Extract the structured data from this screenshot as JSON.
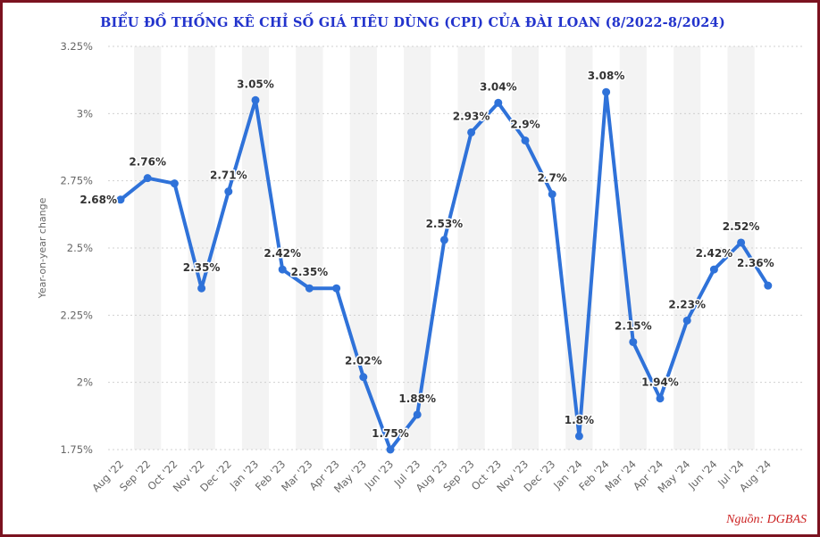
{
  "title": "BIỂU ĐỒ THỐNG KÊ CHỈ SỐ GIÁ TIÊU DÙNG (CPI) CỦA ĐÀI LOAN (8/2022-8/2024)",
  "source": "Nguồn: DGBAS",
  "colors": {
    "line": "#2f72d9",
    "title": "#2233cc",
    "source": "#cc2222",
    "frame": "#7b1220",
    "band": "#f3f3f3",
    "grid": "#d0d0d0"
  },
  "chart_data": {
    "type": "line",
    "title": "BIỂU ĐỒ THỐNG KÊ CHỈ SỐ GIÁ TIÊU DÙNG (CPI) CỦA ĐÀI LOAN (8/2022-8/2024)",
    "xlabel": "",
    "ylabel": "Year-on-year change",
    "ylim": [
      1.75,
      3.25
    ],
    "yticks": [
      1.75,
      2,
      2.25,
      2.5,
      2.75,
      3,
      3.25
    ],
    "ytick_labels": [
      "1.75%",
      "2%",
      "2.25%",
      "2.5%",
      "2.75%",
      "3%",
      "3.25%"
    ],
    "grid": true,
    "categories": [
      "Aug '22",
      "Sep '22",
      "Oct '22",
      "Nov '22",
      "Dec '22",
      "Jan '23",
      "Feb '23",
      "Mar '23",
      "Apr '23",
      "May '23",
      "Jun '23",
      "Jul '23",
      "Aug '23",
      "Sep '23",
      "Oct '23",
      "Nov '23",
      "Dec '23",
      "Jan '24",
      "Feb '24",
      "Mar '24",
      "Apr '24",
      "May '24",
      "Jun '24",
      "Jul '24",
      "Aug '24"
    ],
    "values": [
      2.68,
      2.76,
      2.74,
      2.35,
      2.71,
      3.05,
      2.42,
      2.35,
      2.35,
      2.02,
      1.75,
      1.88,
      2.53,
      2.93,
      3.04,
      2.9,
      2.7,
      1.8,
      3.08,
      2.15,
      1.94,
      2.23,
      2.42,
      2.52,
      2.36
    ],
    "data_labels": [
      "2.68%",
      "2.76%",
      "",
      "2.35%",
      "2.71%",
      "3.05%",
      "2.42%",
      "2.35%",
      "",
      "2.02%",
      "1.75%",
      "1.88%",
      "2.53%",
      "2.93%",
      "3.04%",
      "2.9%",
      "2.7%",
      "1.8%",
      "3.08%",
      "2.15%",
      "1.94%",
      "2.23%",
      "2.42%",
      "2.52%",
      "2.36%"
    ],
    "label_placement": [
      "left",
      "above",
      "none",
      "below",
      "above",
      "above",
      "above",
      "above",
      "none",
      "above",
      "above",
      "above",
      "above",
      "above",
      "above",
      "above",
      "above",
      "above",
      "above",
      "above",
      "above",
      "above",
      "above",
      "above",
      "above-left"
    ]
  }
}
